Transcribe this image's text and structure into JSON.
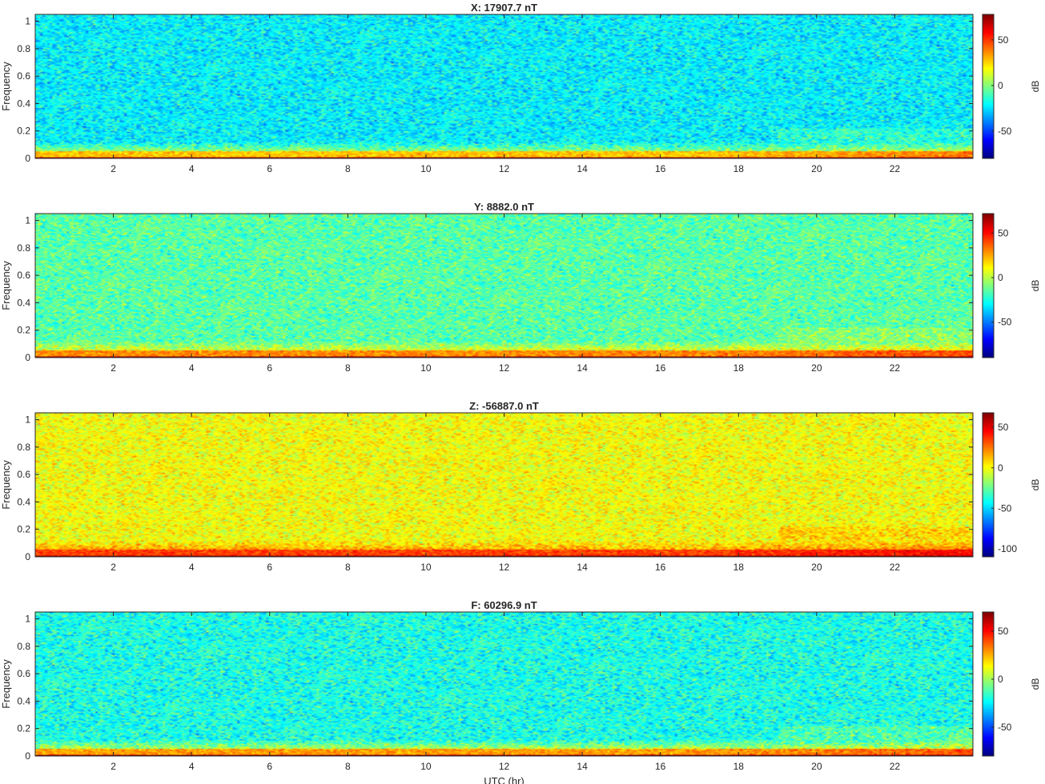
{
  "chart_data": [
    {
      "type": "heatmap",
      "title": "X: 17907.7 nT",
      "xlabel": "",
      "ylabel": "Frequency",
      "xlim": [
        0,
        24
      ],
      "ylim": [
        0,
        1.05
      ],
      "xticks": [
        2,
        4,
        6,
        8,
        10,
        12,
        14,
        16,
        18,
        20,
        22
      ],
      "yticks": [
        0,
        0.2,
        0.4,
        0.6,
        0.8,
        1
      ],
      "colorbar": {
        "label": "dB",
        "range": [
          -80,
          78
        ],
        "ticks": [
          -50,
          0,
          50
        ]
      },
      "levels": {
        "background_db": -22,
        "low_band_db": 28,
        "dc_db": 72
      }
    },
    {
      "type": "heatmap",
      "title": "Y: 8882.0 nT",
      "xlabel": "",
      "ylabel": "Frequency",
      "xlim": [
        0,
        24
      ],
      "ylim": [
        0,
        1.05
      ],
      "xticks": [
        2,
        4,
        6,
        8,
        10,
        12,
        14,
        16,
        18,
        20,
        22
      ],
      "yticks": [
        0,
        0.2,
        0.4,
        0.6,
        0.8,
        1
      ],
      "colorbar": {
        "label": "dB",
        "range": [
          -90,
          72
        ],
        "ticks": [
          -50,
          0,
          50
        ]
      },
      "levels": {
        "background_db": -15,
        "low_band_db": 30,
        "dc_db": 68
      }
    },
    {
      "type": "heatmap",
      "title": "Z: -56887.0 nT",
      "xlabel": "",
      "ylabel": "Frequency",
      "xlim": [
        0,
        24
      ],
      "ylim": [
        0,
        1.05
      ],
      "xticks": [
        2,
        4,
        6,
        8,
        10,
        12,
        14,
        16,
        18,
        20,
        22
      ],
      "yticks": [
        0,
        0.2,
        0.4,
        0.6,
        0.8,
        1
      ],
      "colorbar": {
        "label": "dB",
        "range": [
          -110,
          68
        ],
        "ticks": [
          -100,
          -50,
          0,
          50
        ]
      },
      "levels": {
        "background_db": 0,
        "low_band_db": 35,
        "dc_db": 64
      }
    },
    {
      "type": "heatmap",
      "title": "F: 60296.9 nT",
      "xlabel": "UTC (hr)",
      "ylabel": "Frequency",
      "xlim": [
        0,
        24
      ],
      "ylim": [
        0,
        1.05
      ],
      "xticks": [
        2,
        4,
        6,
        8,
        10,
        12,
        14,
        16,
        18,
        20,
        22
      ],
      "yticks": [
        0,
        0.2,
        0.4,
        0.6,
        0.8,
        1
      ],
      "colorbar": {
        "label": "dB",
        "range": [
          -80,
          70
        ],
        "ticks": [
          -50,
          0,
          50
        ]
      },
      "levels": {
        "background_db": -20,
        "low_band_db": 28,
        "dc_db": 66
      }
    }
  ]
}
